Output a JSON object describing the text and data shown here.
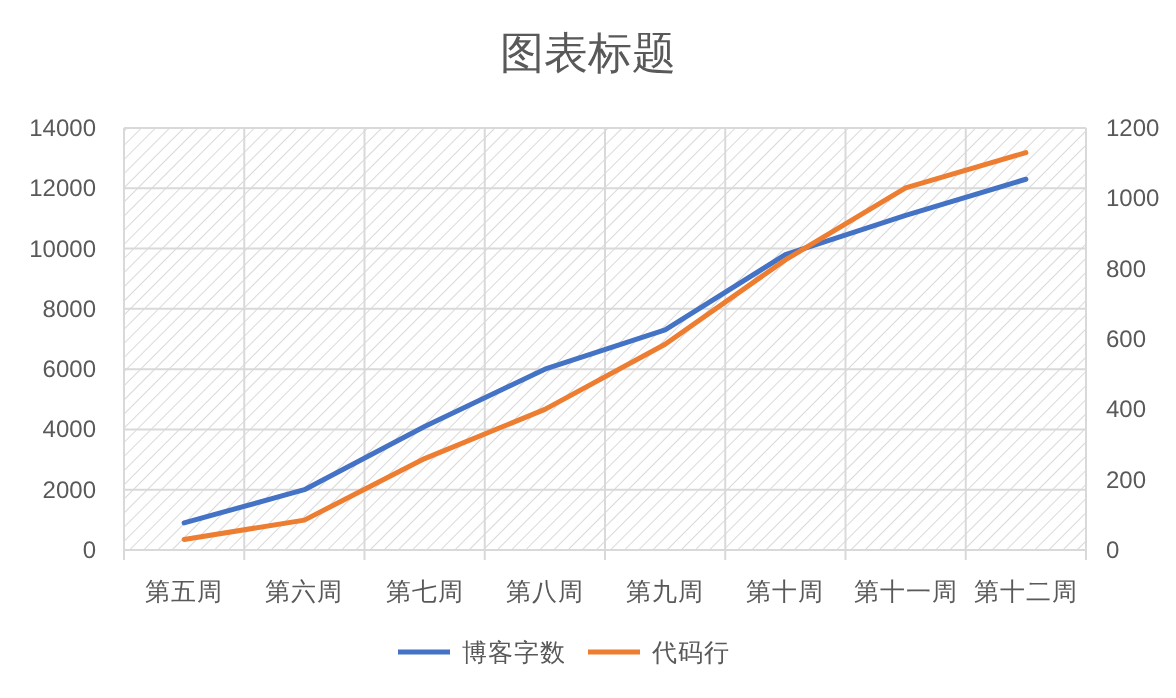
{
  "chart_data": {
    "type": "line",
    "title": "图表标题",
    "categories": [
      "第五周",
      "第六周",
      "第七周",
      "第八周",
      "第九周",
      "第十周",
      "第十一周",
      "第十二周"
    ],
    "series": [
      {
        "name": "博客字数",
        "color": "#4472c4",
        "values": [
          900,
          2000,
          4100,
          6000,
          7300,
          9800,
          11100,
          12300
        ]
      },
      {
        "name": "代码行",
        "color": "#ed7d31",
        "axis": "y2",
        "values": [
          30,
          85,
          260,
          400,
          585,
          825,
          1030,
          1130
        ]
      }
    ],
    "ylim": [
      0,
      14000
    ],
    "yticks": [
      0,
      2000,
      4000,
      6000,
      8000,
      10000,
      12000,
      14000
    ],
    "y2lim": [
      0,
      1200
    ],
    "y2ticks": [
      0,
      200,
      400,
      600,
      800,
      1000,
      1200
    ],
    "grid": true,
    "legend": "bottom",
    "marker": "none",
    "line_style": "solid"
  }
}
